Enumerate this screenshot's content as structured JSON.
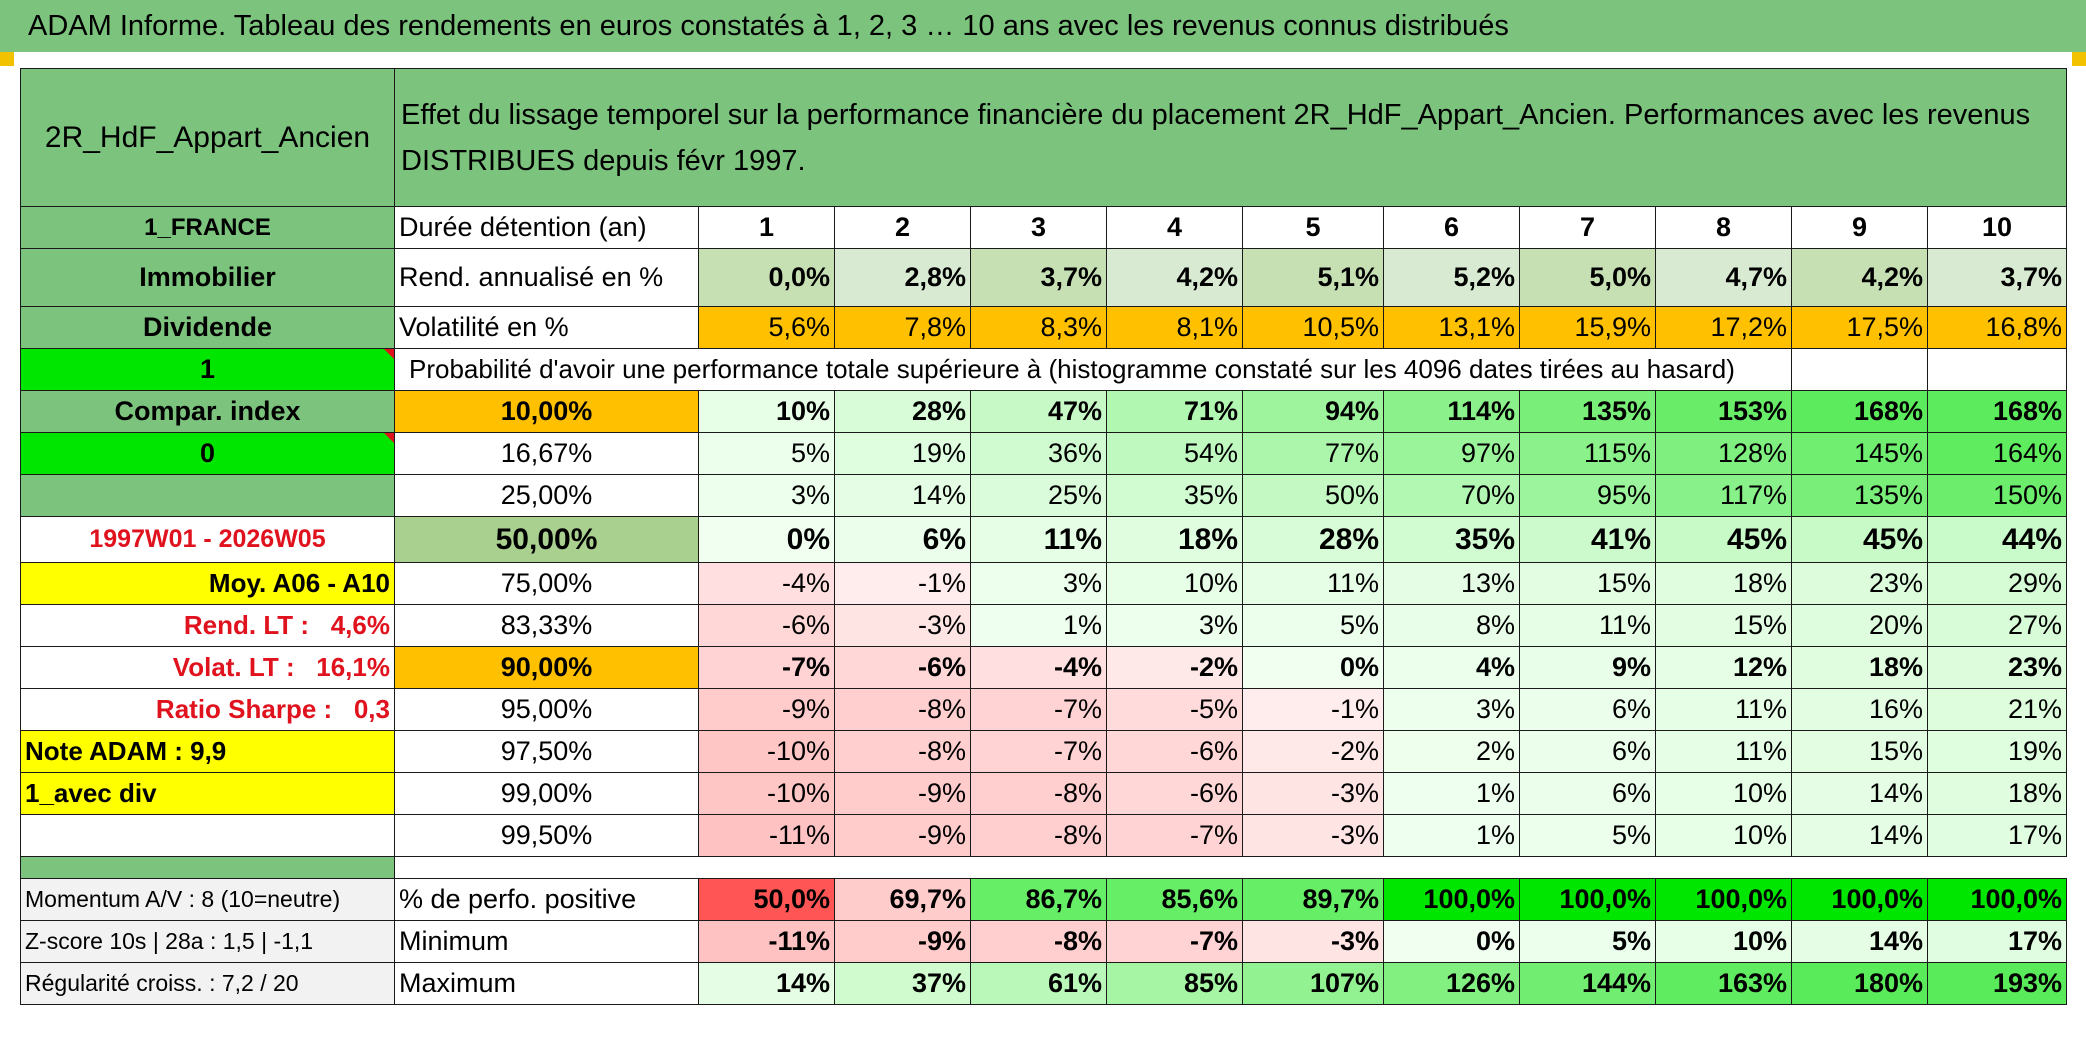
{
  "title": "ADAM Informe. Tableau des rendements en euros constatés à 1, 2, 3 … 10 ans avec les revenus connus distribués",
  "header": {
    "fund": "2R_HdF_Appart_Ancien",
    "description": "Effet du lissage temporel sur la performance financière du placement 2R_HdF_Appart_Ancien. Performances avec les revenus DISTRIBUES depuis févr 1997."
  },
  "left": {
    "country": "1_FRANCE",
    "asset_class": "Immobilier",
    "income": "Dividende",
    "flag1": "1",
    "compar": "Compar. index",
    "flag0": "0",
    "period": "1997W01 - 2026W05",
    "moy": "Moy. A06 - A10",
    "rend_lt": "Rend. LT :   4,6%",
    "volat_lt": "Volat. LT :   16,1%",
    "sharpe": "Ratio Sharpe :   0,3",
    "note": "Note ADAM : 9,9",
    "mode": "1_avec div",
    "momentum": "Momentum A/V : 8 (10=neutre)",
    "zscore": "Z-score 10s | 28a : 1,5 | -1,1",
    "regularite": "Régularité croiss. : 7,2 / 20"
  },
  "years_label": "Durée détention (an)",
  "years": [
    "1",
    "2",
    "3",
    "4",
    "5",
    "6",
    "7",
    "8",
    "9",
    "10"
  ],
  "rend_label": "Rend. annualisé en %",
  "rend": [
    "0,0%",
    "2,8%",
    "3,7%",
    "4,2%",
    "5,1%",
    "5,2%",
    "5,0%",
    "4,7%",
    "4,2%",
    "3,7%"
  ],
  "vol_label": "Volatilité en %",
  "vol": [
    "5,6%",
    "7,8%",
    "8,3%",
    "8,1%",
    "10,5%",
    "13,1%",
    "15,9%",
    "17,2%",
    "17,5%",
    "16,8%"
  ],
  "proba_label": "Probabilité d'avoir une performance totale supérieure à (histogramme constaté sur les 4096 dates tirées au hasard)",
  "quantiles": [
    {
      "label": "10,00%",
      "values": [
        "10%",
        "28%",
        "47%",
        "71%",
        "94%",
        "114%",
        "135%",
        "153%",
        "168%",
        "168%"
      ]
    },
    {
      "label": "16,67%",
      "values": [
        "5%",
        "19%",
        "36%",
        "54%",
        "77%",
        "97%",
        "115%",
        "128%",
        "145%",
        "164%"
      ]
    },
    {
      "label": "25,00%",
      "values": [
        "3%",
        "14%",
        "25%",
        "35%",
        "50%",
        "70%",
        "95%",
        "117%",
        "135%",
        "150%"
      ]
    },
    {
      "label": "50,00%",
      "values": [
        "0%",
        "6%",
        "11%",
        "18%",
        "28%",
        "35%",
        "41%",
        "45%",
        "45%",
        "44%"
      ]
    },
    {
      "label": "75,00%",
      "values": [
        "-4%",
        "-1%",
        "3%",
        "10%",
        "11%",
        "13%",
        "15%",
        "18%",
        "23%",
        "29%"
      ]
    },
    {
      "label": "83,33%",
      "values": [
        "-6%",
        "-3%",
        "1%",
        "3%",
        "5%",
        "8%",
        "11%",
        "15%",
        "20%",
        "27%"
      ]
    },
    {
      "label": "90,00%",
      "values": [
        "-7%",
        "-6%",
        "-4%",
        "-2%",
        "0%",
        "4%",
        "9%",
        "12%",
        "18%",
        "23%"
      ]
    },
    {
      "label": "95,00%",
      "values": [
        "-9%",
        "-8%",
        "-7%",
        "-5%",
        "-1%",
        "3%",
        "6%",
        "11%",
        "16%",
        "21%"
      ]
    },
    {
      "label": "97,50%",
      "values": [
        "-10%",
        "-8%",
        "-7%",
        "-6%",
        "-2%",
        "2%",
        "6%",
        "11%",
        "15%",
        "19%"
      ]
    },
    {
      "label": "99,00%",
      "values": [
        "-10%",
        "-9%",
        "-8%",
        "-6%",
        "-3%",
        "1%",
        "6%",
        "10%",
        "14%",
        "18%"
      ]
    },
    {
      "label": "99,50%",
      "values": [
        "-11%",
        "-9%",
        "-8%",
        "-7%",
        "-3%",
        "1%",
        "5%",
        "10%",
        "14%",
        "17%"
      ]
    }
  ],
  "pos_label": "% de perfo. positive",
  "pos": [
    "50,0%",
    "69,7%",
    "86,7%",
    "85,6%",
    "89,7%",
    "100,0%",
    "100,0%",
    "100,0%",
    "100,0%",
    "100,0%"
  ],
  "min_label": "Minimum",
  "min": [
    "-11%",
    "-9%",
    "-8%",
    "-7%",
    "-3%",
    "0%",
    "5%",
    "10%",
    "14%",
    "17%"
  ],
  "max_label": "Maximum",
  "max": [
    "14%",
    "37%",
    "61%",
    "85%",
    "107%",
    "126%",
    "144%",
    "163%",
    "180%",
    "193%"
  ],
  "colors": {
    "header_green": "#7cc47e",
    "rend_green": "#c6e0b4",
    "orange": "#ffc000",
    "yellow": "#ffff00",
    "lime": "#00e600",
    "red_text": "#e0121e"
  }
}
